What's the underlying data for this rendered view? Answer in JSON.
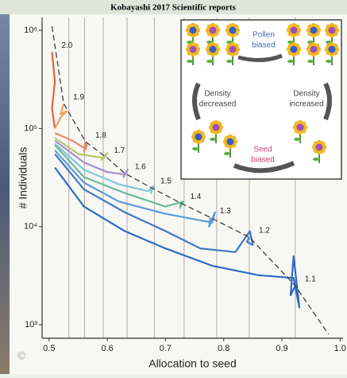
{
  "header": {
    "title": "Kobayashi 2017 Scientific reports"
  },
  "chart_data": {
    "type": "line",
    "x_label": "Allocation to seed",
    "y_label": "# Individuals",
    "log_y": true,
    "grid": false,
    "xlim": [
      0.488,
      1.005
    ],
    "ylim": [
      730,
      1350000
    ],
    "xticks": [
      0.5,
      0.6,
      0.7,
      0.8,
      0.9,
      {
        "value": 1,
        "label": "1.0"
      }
    ],
    "yticks": [
      {
        "value": 1000,
        "label": "10³"
      },
      {
        "value": 10000,
        "label": "10⁴"
      },
      {
        "value": 100000,
        "label": "10⁵"
      },
      {
        "value": 1000000,
        "label": "10⁶"
      }
    ],
    "vlines": [
      0.534,
      0.561,
      0.593,
      0.634,
      0.681,
      0.732,
      0.788,
      0.844,
      0.923
    ],
    "boundary": {
      "color": "#333333",
      "x": [
        0.505,
        0.525,
        0.563,
        0.6,
        0.63,
        0.675,
        0.726,
        0.777,
        0.844,
        0.923,
        0.98
      ],
      "values": [
        1100000,
        180000,
        73000,
        50000,
        35000,
        25000,
        17400,
        12400,
        7800,
        2500,
        800
      ]
    },
    "series": [
      {
        "name": "2.0",
        "color": "#e8603c",
        "x": [
          0.51,
          0.505,
          0.51,
          0.505
        ],
        "values": [
          100000,
          160000,
          300000,
          600000
        ]
      },
      {
        "name": "1.9",
        "color": "#f0a050",
        "x": [
          0.51,
          0.52,
          0.53,
          0.52,
          0.525
        ],
        "values": [
          100000,
          130000,
          150000,
          140000,
          178000
        ]
      },
      {
        "name": "1.8",
        "color": "#e88a6a",
        "x": [
          0.51,
          0.54,
          0.563,
          0.565,
          0.56,
          0.563
        ],
        "values": [
          90000,
          75000,
          62000,
          70000,
          58000,
          73000
        ]
      },
      {
        "name": "1.7",
        "color": "#b5c56b",
        "x": [
          0.51,
          0.55,
          0.595,
          0.6,
          0.59,
          0.595
        ],
        "values": [
          80000,
          55000,
          50000,
          56000,
          48000,
          51000
        ]
      },
      {
        "name": "1.6",
        "color": "#a78bd0",
        "x": [
          0.51,
          0.56,
          0.6,
          0.63,
          0.635,
          0.628,
          0.631
        ],
        "values": [
          75000,
          45000,
          36000,
          34000,
          38000,
          32000,
          35000
        ]
      },
      {
        "name": "1.5",
        "color": "#7ec8d8",
        "x": [
          0.51,
          0.56,
          0.62,
          0.67,
          0.68,
          0.675,
          0.675
        ],
        "values": [
          70000,
          38000,
          27000,
          23000,
          26000,
          22000,
          25000
        ]
      },
      {
        "name": "1.4",
        "color": "#6cb89a",
        "x": [
          0.51,
          0.56,
          0.63,
          0.7,
          0.73,
          0.725,
          0.726
        ],
        "values": [
          68000,
          32000,
          22000,
          16000,
          18000,
          15500,
          17400
        ]
      },
      {
        "name": "1.3",
        "color": "#5b9bd8",
        "x": [
          0.51,
          0.56,
          0.62,
          0.7,
          0.78,
          0.785,
          0.775,
          0.777
        ],
        "values": [
          60000,
          28000,
          18000,
          13500,
          11000,
          14000,
          10000,
          12400
        ]
      },
      {
        "name": "1.2",
        "color": "#3f78c0",
        "x": [
          0.51,
          0.56,
          0.63,
          0.7,
          0.76,
          0.82,
          0.845,
          0.85,
          0.84,
          0.844
        ],
        "values": [
          55000,
          24000,
          14000,
          9000,
          6000,
          5500,
          9000,
          6500,
          7000,
          7800
        ]
      },
      {
        "name": "1.1",
        "color": "#2f6ac0",
        "x": [
          0.51,
          0.56,
          0.63,
          0.7,
          0.78,
          0.86,
          0.92,
          0.93,
          0.92,
          0.915,
          0.923
        ],
        "values": [
          40000,
          16000,
          9000,
          6000,
          4000,
          3200,
          3000,
          1500,
          5000,
          2000,
          2500
        ]
      }
    ]
  },
  "inset": {
    "pollen": [
      "Pollen",
      "biased"
    ],
    "decreased": [
      "Density",
      "decreased"
    ],
    "increased": [
      "Density",
      "increased"
    ],
    "seed": [
      "Seed",
      "biased"
    ]
  },
  "copyright": "©"
}
